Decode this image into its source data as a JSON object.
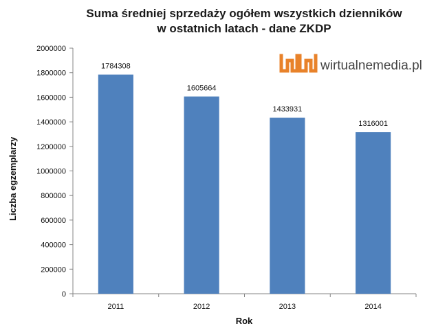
{
  "chart_data": {
    "type": "bar",
    "title": [
      "Suma średniej sprzedaży ogółem wszystkich dzienników",
      "w ostatnich latach - dane ZKDP"
    ],
    "xlabel": "Rok",
    "ylabel": "Liczba egzemplarzy",
    "categories": [
      "2011",
      "2012",
      "2013",
      "2014"
    ],
    "values": [
      1784308,
      1605664,
      1433931,
      1316001
    ],
    "data_labels": [
      "1784308",
      "1605664",
      "1433931",
      "1316001"
    ],
    "ylim": [
      0,
      2000000
    ],
    "yticks": [
      0,
      200000,
      400000,
      600000,
      800000,
      1000000,
      1200000,
      1400000,
      1600000,
      1800000,
      2000000
    ],
    "ytick_labels": [
      "0",
      "200000",
      "400000",
      "600000",
      "800000",
      "1000000",
      "1200000",
      "1400000",
      "1600000",
      "1800000",
      "2000000"
    ],
    "grid": false,
    "colors": {
      "bar": "#4f81bd",
      "axis": "#868686",
      "logo_orange": "#e8822a"
    }
  },
  "logo": {
    "text": "wirtualnemedia.pl",
    "icon": "wm-logo-icon"
  }
}
